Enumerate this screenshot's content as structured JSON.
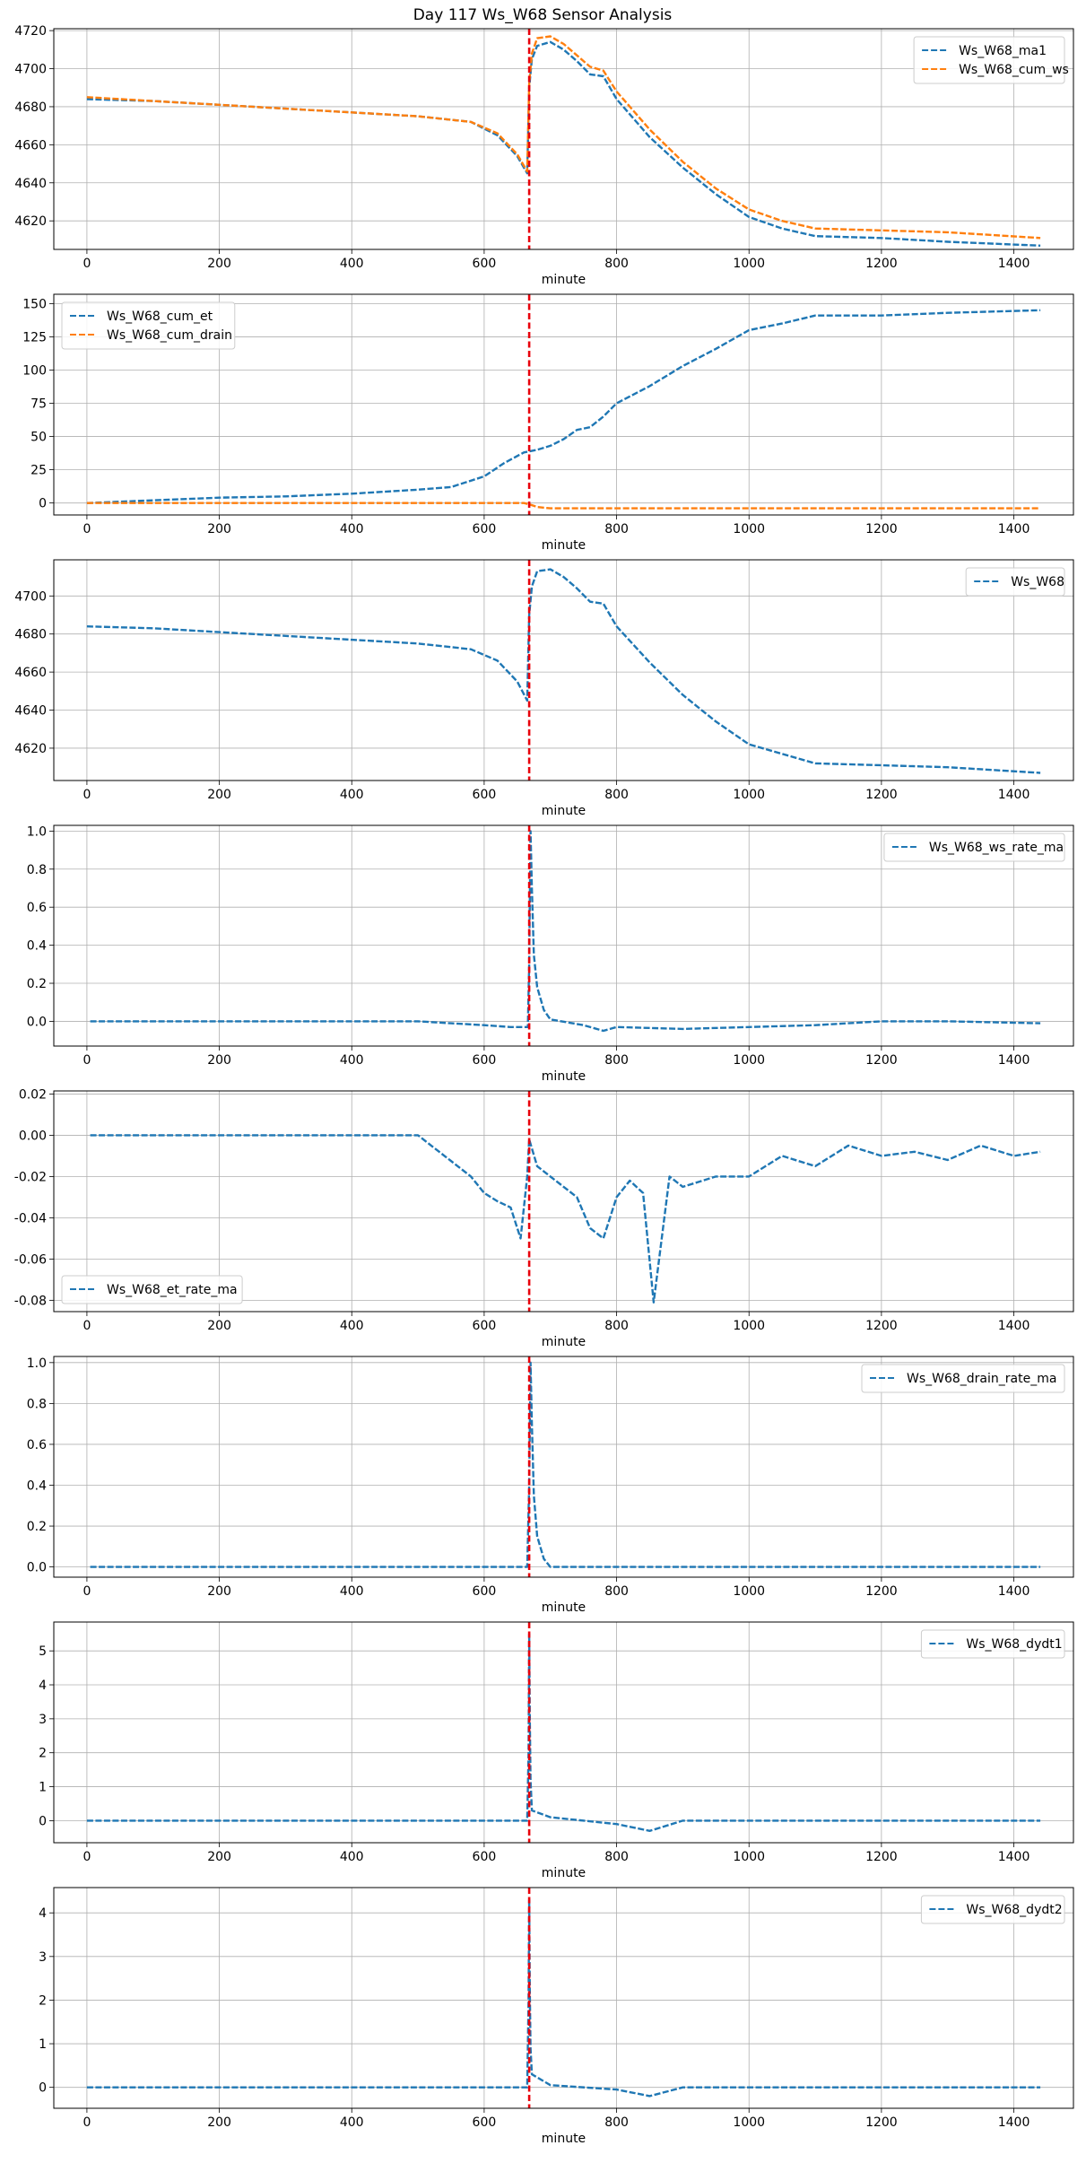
{
  "figure": {
    "title": "Day 117 Ws_W68 Sensor Analysis"
  },
  "colors": {
    "blue": "#1f77b4",
    "orange": "#ff7f0e",
    "event": "#e8000b",
    "grid": "#b0b0b0"
  },
  "event_x": 668,
  "chart_data": [
    {
      "type": "line",
      "xlabel": "minute",
      "xlim": [
        -50,
        1490
      ],
      "ylim": [
        4605,
        4721
      ],
      "xticks": [
        0,
        200,
        400,
        600,
        800,
        1000,
        1200,
        1400
      ],
      "yticks": [
        4620,
        4640,
        4660,
        4680,
        4700,
        4720
      ],
      "legend": "top-right",
      "series": [
        {
          "name": "Ws_W68_ma1",
          "color": "blue",
          "style": "dashed",
          "x": [
            0,
            100,
            200,
            300,
            400,
            500,
            580,
            620,
            650,
            665,
            668,
            672,
            680,
            700,
            720,
            740,
            760,
            780,
            800,
            850,
            900,
            950,
            1000,
            1050,
            1100,
            1200,
            1300,
            1440
          ],
          "y": [
            4684,
            4683,
            4681,
            4679,
            4677,
            4675,
            4672,
            4665,
            4654,
            4645,
            4690,
            4705,
            4712,
            4714,
            4710,
            4704,
            4697,
            4696,
            4684,
            4664,
            4648,
            4634,
            4622,
            4616,
            4612,
            4611,
            4609,
            4607
          ]
        },
        {
          "name": "Ws_W68_cum_ws",
          "color": "orange",
          "style": "dashed",
          "x": [
            0,
            100,
            200,
            300,
            400,
            500,
            580,
            620,
            650,
            665,
            668,
            672,
            680,
            700,
            720,
            740,
            760,
            780,
            800,
            850,
            900,
            950,
            1000,
            1050,
            1100,
            1200,
            1300,
            1440
          ],
          "y": [
            4685,
            4683,
            4681,
            4679,
            4677,
            4675,
            4672,
            4666,
            4655,
            4646,
            4692,
            4708,
            4716,
            4717,
            4713,
            4707,
            4701,
            4699,
            4688,
            4668,
            4651,
            4637,
            4626,
            4620,
            4616,
            4615,
            4614,
            4611
          ]
        }
      ]
    },
    {
      "type": "line",
      "xlabel": "minute",
      "xlim": [
        -50,
        1490
      ],
      "ylim": [
        -9,
        157
      ],
      "xticks": [
        0,
        200,
        400,
        600,
        800,
        1000,
        1200,
        1400
      ],
      "yticks": [
        0,
        25,
        50,
        75,
        100,
        125,
        150
      ],
      "legend": "top-left",
      "series": [
        {
          "name": "Ws_W68_cum_et",
          "color": "blue",
          "style": "dashed",
          "x": [
            0,
            100,
            200,
            300,
            400,
            500,
            550,
            600,
            630,
            660,
            680,
            700,
            720,
            740,
            760,
            780,
            800,
            850,
            900,
            950,
            1000,
            1050,
            1100,
            1200,
            1300,
            1440
          ],
          "y": [
            0,
            2,
            4,
            5,
            7,
            10,
            12,
            20,
            30,
            38,
            40,
            43,
            48,
            55,
            57,
            65,
            75,
            88,
            103,
            116,
            130,
            135,
            141,
            141,
            143,
            145
          ]
        },
        {
          "name": "Ws_W68_cum_drain",
          "color": "orange",
          "style": "dashed",
          "x": [
            0,
            660,
            668,
            680,
            700,
            1440
          ],
          "y": [
            0,
            0,
            -1,
            -3,
            -4,
            -4
          ]
        }
      ]
    },
    {
      "type": "line",
      "xlabel": "minute",
      "xlim": [
        -50,
        1490
      ],
      "ylim": [
        4603,
        4719
      ],
      "xticks": [
        0,
        200,
        400,
        600,
        800,
        1000,
        1200,
        1400
      ],
      "yticks": [
        4620,
        4640,
        4660,
        4680,
        4700
      ],
      "legend": "top-right",
      "series": [
        {
          "name": "Ws_W68",
          "color": "blue",
          "style": "dashed",
          "x": [
            0,
            100,
            200,
            300,
            400,
            500,
            580,
            620,
            650,
            665,
            668,
            672,
            680,
            700,
            720,
            740,
            760,
            780,
            800,
            850,
            900,
            950,
            1000,
            1050,
            1100,
            1200,
            1300,
            1440
          ],
          "y": [
            4684,
            4683,
            4681,
            4679,
            4677,
            4675,
            4672,
            4666,
            4655,
            4645,
            4690,
            4705,
            4713,
            4714,
            4710,
            4704,
            4697,
            4696,
            4684,
            4665,
            4648,
            4634,
            4622,
            4617,
            4612,
            4611,
            4610,
            4607
          ]
        }
      ]
    },
    {
      "type": "line",
      "xlabel": "minute",
      "xlim": [
        -50,
        1490
      ],
      "ylim": [
        -0.13,
        1.03
      ],
      "xticks": [
        0,
        200,
        400,
        600,
        800,
        1000,
        1200,
        1400
      ],
      "yticks": [
        0.0,
        0.2,
        0.4,
        0.6,
        0.8,
        1.0
      ],
      "legend": "top-right",
      "series": [
        {
          "name": "Ws_W68_ws_rate_ma",
          "color": "blue",
          "style": "dashed",
          "x": [
            5,
            100,
            200,
            300,
            400,
            500,
            550,
            600,
            640,
            660,
            666,
            668,
            670,
            672,
            675,
            680,
            690,
            700,
            750,
            780,
            800,
            900,
            1000,
            1100,
            1200,
            1300,
            1440
          ],
          "y": [
            0,
            0,
            0,
            0,
            0,
            0,
            -0.01,
            -0.02,
            -0.03,
            -0.03,
            -0.03,
            0.3,
            1.0,
            0.7,
            0.35,
            0.18,
            0.06,
            0.01,
            -0.02,
            -0.05,
            -0.03,
            -0.04,
            -0.03,
            -0.02,
            0,
            0,
            -0.01
          ]
        }
      ]
    },
    {
      "type": "line",
      "xlabel": "minute",
      "xlim": [
        -50,
        1490
      ],
      "ylim": [
        -0.0855,
        0.0215
      ],
      "xticks": [
        0,
        200,
        400,
        600,
        800,
        1000,
        1200,
        1400
      ],
      "yticks": [
        -0.08,
        -0.06,
        -0.04,
        -0.02,
        0.0,
        0.02
      ],
      "legend": "bottom-left",
      "series": [
        {
          "name": "Ws_W68_et_rate_ma",
          "color": "blue",
          "style": "dashed",
          "x": [
            5,
            100,
            200,
            300,
            400,
            500,
            520,
            540,
            560,
            580,
            600,
            620,
            640,
            655,
            665,
            668,
            680,
            700,
            720,
            740,
            760,
            780,
            800,
            820,
            840,
            856,
            880,
            900,
            950,
            1000,
            1050,
            1100,
            1150,
            1200,
            1250,
            1300,
            1350,
            1400,
            1440
          ],
          "y": [
            0,
            0,
            0,
            0,
            0,
            0,
            -0.005,
            -0.01,
            -0.015,
            -0.02,
            -0.028,
            -0.032,
            -0.035,
            -0.05,
            -0.02,
            -0.002,
            -0.015,
            -0.02,
            -0.025,
            -0.03,
            -0.045,
            -0.05,
            -0.03,
            -0.022,
            -0.028,
            -0.081,
            -0.02,
            -0.025,
            -0.02,
            -0.02,
            -0.01,
            -0.015,
            -0.005,
            -0.01,
            -0.008,
            -0.012,
            -0.005,
            -0.01,
            -0.008
          ]
        }
      ]
    },
    {
      "type": "line",
      "xlabel": "minute",
      "xlim": [
        -50,
        1490
      ],
      "ylim": [
        -0.05,
        1.03
      ],
      "xticks": [
        0,
        200,
        400,
        600,
        800,
        1000,
        1200,
        1400
      ],
      "yticks": [
        0.0,
        0.2,
        0.4,
        0.6,
        0.8,
        1.0
      ],
      "legend": "top-right",
      "series": [
        {
          "name": "Ws_W68_drain_rate_ma",
          "color": "blue",
          "style": "dashed",
          "x": [
            5,
            300,
            600,
            665,
            668,
            670,
            672,
            675,
            680,
            690,
            700,
            710,
            800,
            1000,
            1200,
            1440
          ],
          "y": [
            0,
            0,
            0,
            0,
            0.4,
            1.0,
            0.7,
            0.35,
            0.15,
            0.04,
            0.0,
            0,
            0,
            0,
            0,
            0
          ]
        }
      ]
    },
    {
      "type": "line",
      "xlabel": "minute",
      "xlim": [
        -50,
        1490
      ],
      "ylim": [
        -0.65,
        5.85
      ],
      "xticks": [
        0,
        200,
        400,
        600,
        800,
        1000,
        1200,
        1400
      ],
      "yticks": [
        0,
        1,
        2,
        3,
        4,
        5
      ],
      "legend": "top-right",
      "series": [
        {
          "name": "Ws_W68_dydt1",
          "color": "blue",
          "style": "dashed",
          "x": [
            0,
            200,
            400,
            600,
            665,
            667,
            668,
            669,
            670,
            672,
            700,
            800,
            850,
            900,
            1000,
            1100,
            1200,
            1300,
            1440
          ],
          "y": [
            0,
            0,
            0,
            0,
            0,
            2.0,
            5.5,
            3.0,
            1.2,
            0.3,
            0.1,
            -0.1,
            -0.3,
            0,
            0,
            0,
            0,
            0,
            0
          ]
        }
      ]
    },
    {
      "type": "line",
      "xlabel": "minute",
      "xlim": [
        -50,
        1490
      ],
      "ylim": [
        -0.48,
        4.58
      ],
      "xticks": [
        0,
        200,
        400,
        600,
        800,
        1000,
        1200,
        1400
      ],
      "yticks": [
        0,
        1,
        2,
        3,
        4
      ],
      "legend": "top-right",
      "series": [
        {
          "name": "Ws_W68_dydt2",
          "color": "blue",
          "style": "dashed",
          "x": [
            0,
            200,
            400,
            600,
            665,
            667,
            668,
            669,
            670,
            672,
            700,
            800,
            850,
            900,
            1000,
            1100,
            1200,
            1300,
            1440
          ],
          "y": [
            0,
            0,
            0,
            0,
            0,
            2.0,
            4.3,
            2.2,
            0.9,
            0.3,
            0.05,
            -0.05,
            -0.2,
            0,
            0,
            0,
            0,
            0,
            0
          ]
        }
      ]
    }
  ]
}
